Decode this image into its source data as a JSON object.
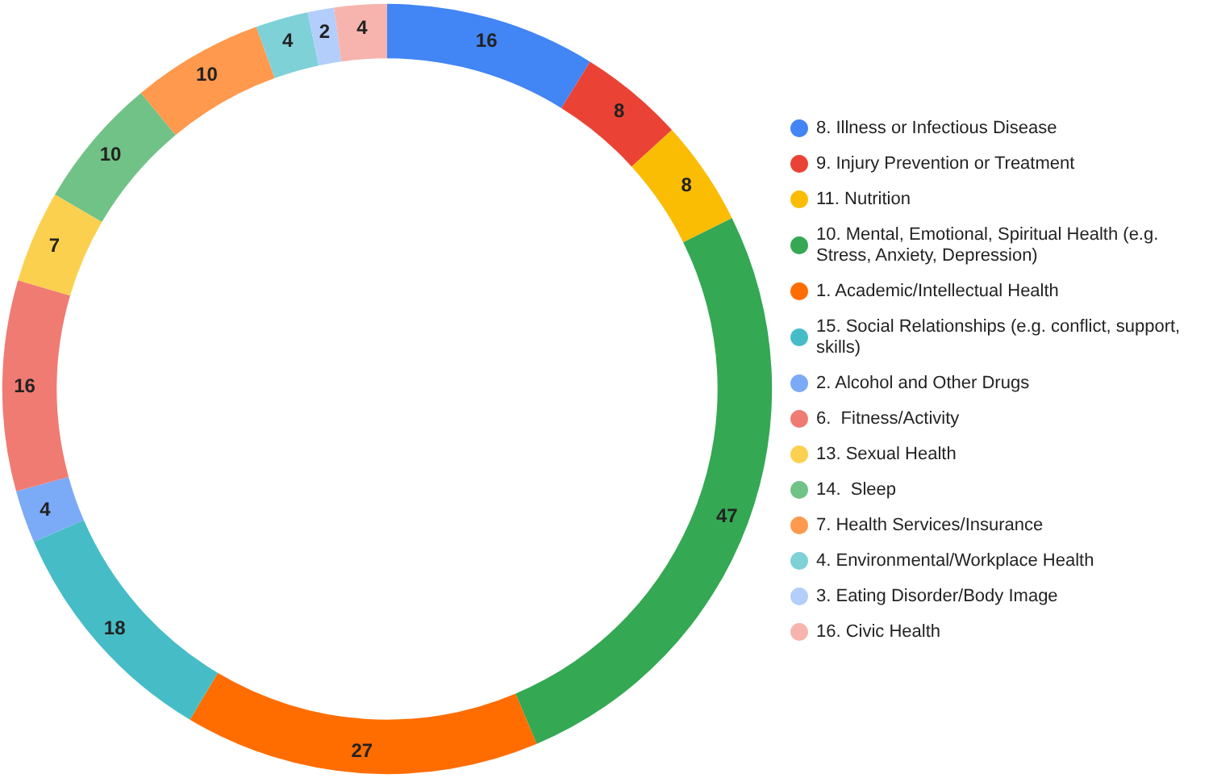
{
  "chart_data": {
    "type": "donut",
    "categories": [
      "8. Illness or Infectious Disease",
      "9. Injury Prevention or Treatment",
      "11. Nutrition",
      "10. Mental, Emotional, Spiritual Health (e.g. Stress, Anxiety, Depression)",
      "1. Academic/Intellectual Health",
      "15. Social Relationships (e.g. conflict, support, skills)",
      "2. Alcohol and Other Drugs",
      "6.  Fitness/Activity",
      "13. Sexual Health",
      "14.  Sleep",
      "7. Health Services/Insurance",
      "4. Environmental/Workplace Health",
      "3. Eating Disorder/Body Image",
      "16. Civic Health"
    ],
    "values": [
      16,
      8,
      8,
      47,
      27,
      18,
      4,
      16,
      7,
      10,
      10,
      4,
      2,
      4
    ],
    "colors": [
      "#4285f4",
      "#ea4335",
      "#fbbc04",
      "#34a853",
      "#ff6d01",
      "#46bdc6",
      "#7baaf7",
      "#f07b72",
      "#fcd04f",
      "#71c287",
      "#ff994d",
      "#7ed1d7",
      "#b3cefb",
      "#f7b4ae"
    ],
    "data_labels": true,
    "legend": "right"
  }
}
